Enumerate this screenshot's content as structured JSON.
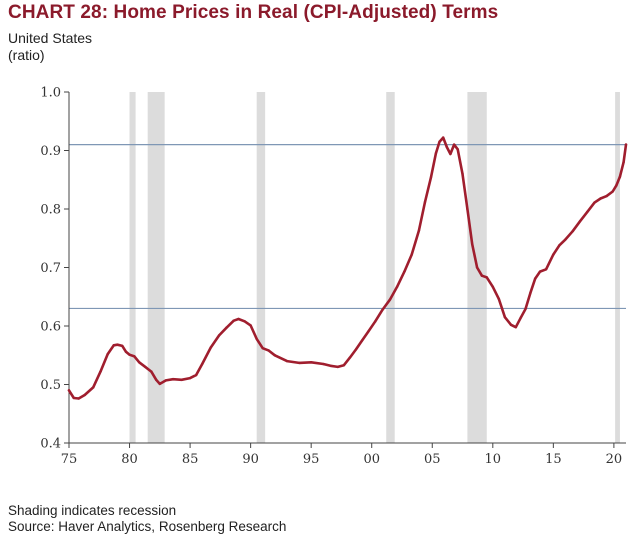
{
  "chart_data": {
    "type": "line",
    "title": "CHART 28: Home Prices in Real (CPI-Adjusted) Terms",
    "subtitle": [
      "United States",
      "(ratio)"
    ],
    "xlabel": "",
    "ylabel": "",
    "xlim": [
      1975,
      2021
    ],
    "ylim": [
      0.4,
      1.0
    ],
    "x_tick_values": [
      1975,
      1980,
      1985,
      1990,
      1995,
      2000,
      2005,
      2010,
      2015,
      2020
    ],
    "x_tick_labels": [
      "75",
      "80",
      "85",
      "90",
      "95",
      "00",
      "05",
      "10",
      "15",
      "20"
    ],
    "y_tick_values": [
      0.4,
      0.5,
      0.6,
      0.7,
      0.8,
      0.9,
      1.0
    ],
    "y_tick_labels": [
      "0.4",
      "0.5",
      "0.6",
      "0.7",
      "0.8",
      "0.9",
      "1.0"
    ],
    "grid": false,
    "series": [
      {
        "x": [
          1975.0,
          1975.4,
          1975.8,
          1976.3,
          1977.0,
          1977.6,
          1978.2,
          1978.7,
          1979.0,
          1979.4,
          1979.7,
          1980.0,
          1980.4,
          1980.8,
          1981.3,
          1981.8,
          1982.2,
          1982.5,
          1983.0,
          1983.6,
          1984.3,
          1985.0,
          1985.5,
          1986.0,
          1986.7,
          1987.4,
          1988.0,
          1988.6,
          1989.0,
          1989.5,
          1990.0,
          1990.5,
          1991.0,
          1991.5,
          1992.0,
          1993.0,
          1994.0,
          1995.0,
          1996.0,
          1996.6,
          1997.2,
          1997.7,
          1998.2,
          1998.7,
          1999.2,
          1999.7,
          2000.3,
          2000.9,
          2001.5,
          2002.1,
          2002.7,
          2003.3,
          2003.9,
          2004.4,
          2004.9,
          2005.3,
          2005.6,
          2005.9,
          2006.2,
          2006.5,
          2006.8,
          2007.1,
          2007.5,
          2007.9,
          2008.3,
          2008.7,
          2009.1,
          2009.5,
          2010.0,
          2010.5,
          2011.0,
          2011.5,
          2011.9,
          2012.3,
          2012.7,
          2013.1,
          2013.5,
          2013.9,
          2014.4,
          2015.0,
          2015.5,
          2016.0,
          2016.6,
          2017.2,
          2017.8,
          2018.4,
          2018.9,
          2019.4,
          2019.9,
          2020.2,
          2020.5,
          2020.8,
          2021.0
        ],
        "values": [
          0.49,
          0.477,
          0.476,
          0.482,
          0.495,
          0.522,
          0.552,
          0.567,
          0.568,
          0.566,
          0.556,
          0.551,
          0.548,
          0.538,
          0.53,
          0.522,
          0.508,
          0.501,
          0.507,
          0.509,
          0.508,
          0.511,
          0.516,
          0.535,
          0.563,
          0.584,
          0.597,
          0.609,
          0.612,
          0.608,
          0.601,
          0.578,
          0.562,
          0.558,
          0.55,
          0.54,
          0.537,
          0.538,
          0.535,
          0.532,
          0.53,
          0.533,
          0.546,
          0.56,
          0.575,
          0.59,
          0.608,
          0.628,
          0.645,
          0.667,
          0.693,
          0.722,
          0.763,
          0.812,
          0.855,
          0.895,
          0.915,
          0.922,
          0.906,
          0.894,
          0.91,
          0.902,
          0.86,
          0.8,
          0.74,
          0.7,
          0.686,
          0.683,
          0.667,
          0.646,
          0.615,
          0.602,
          0.598,
          0.614,
          0.629,
          0.656,
          0.681,
          0.693,
          0.697,
          0.722,
          0.738,
          0.748,
          0.762,
          0.779,
          0.795,
          0.811,
          0.818,
          0.822,
          0.83,
          0.84,
          0.855,
          0.88,
          0.91
        ],
        "color": "#a01e2e"
      }
    ],
    "reference_lines": [
      {
        "axis": "y",
        "value": 0.91,
        "color": "#7f97b5"
      },
      {
        "axis": "y",
        "value": 0.63,
        "color": "#7f97b5"
      }
    ],
    "recession_bands": [
      [
        1980.0,
        1980.5
      ],
      [
        1981.5,
        1982.9
      ],
      [
        1990.5,
        1991.2
      ],
      [
        2001.2,
        2001.9
      ],
      [
        2007.9,
        2009.5
      ],
      [
        2020.1,
        2020.5
      ]
    ],
    "recession_color": "#dcdcdc",
    "notes": [
      "Shading indicates recession",
      "Source: Haver Analytics, Rosenberg Research"
    ]
  }
}
